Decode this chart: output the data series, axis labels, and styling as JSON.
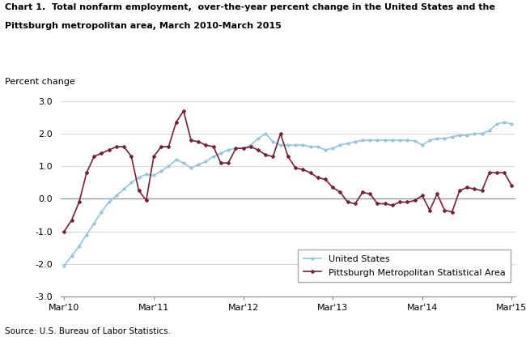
{
  "title_line1": "Chart 1.  Total nonfarm employment,  over-the-year percent change in the United States and the",
  "title_line2": "Pittsburgh metropolitan area, March 2010-March 2015",
  "ylabel": "Percent change",
  "source": "Source: U.S. Bureau of Labor Statistics.",
  "ylim": [
    -3.0,
    3.0
  ],
  "yticks": [
    -3.0,
    -2.0,
    -1.0,
    0.0,
    1.0,
    2.0,
    3.0
  ],
  "xtick_labels": [
    "Mar'10",
    "Mar'11",
    "Mar'12",
    "Mar'13",
    "Mar'14",
    "Mar'15"
  ],
  "xtick_positions": [
    0,
    12,
    24,
    36,
    48,
    60
  ],
  "us_color": "#92C5DE",
  "pitt_color": "#7B2035",
  "us_label": "United States",
  "pitt_label": "Pittsburgh Metropolitan Statistical Area",
  "us_data": [
    -2.05,
    -1.75,
    -1.45,
    -1.1,
    -0.75,
    -0.4,
    -0.1,
    0.1,
    0.3,
    0.5,
    0.65,
    0.75,
    0.72,
    0.85,
    1.0,
    1.2,
    1.1,
    0.95,
    1.05,
    1.15,
    1.3,
    1.4,
    1.5,
    1.55,
    1.55,
    1.65,
    1.85,
    2.0,
    1.75,
    1.65,
    1.65,
    1.65,
    1.65,
    1.6,
    1.6,
    1.5,
    1.55,
    1.65,
    1.7,
    1.75,
    1.8,
    1.8,
    1.8,
    1.8,
    1.8,
    1.8,
    1.8,
    1.78,
    1.65,
    1.8,
    1.85,
    1.85,
    1.9,
    1.95,
    1.95,
    2.0,
    2.0,
    2.1,
    2.3,
    2.35,
    2.3
  ],
  "pitt_data": [
    -1.0,
    -0.65,
    -0.1,
    0.8,
    1.3,
    1.4,
    1.5,
    1.6,
    1.6,
    1.3,
    0.25,
    -0.05,
    1.3,
    1.6,
    1.6,
    2.35,
    2.7,
    1.8,
    1.75,
    1.65,
    1.6,
    1.1,
    1.1,
    1.55,
    1.55,
    1.6,
    1.5,
    1.35,
    1.3,
    2.0,
    1.3,
    0.95,
    0.9,
    0.8,
    0.65,
    0.6,
    0.35,
    0.2,
    -0.1,
    -0.15,
    0.2,
    0.15,
    -0.15,
    -0.15,
    -0.2,
    -0.1,
    -0.1,
    -0.05,
    0.1,
    -0.35,
    0.15,
    -0.35,
    -0.4,
    0.25,
    0.35,
    0.3,
    0.25,
    0.8,
    0.8,
    0.8,
    0.4
  ]
}
